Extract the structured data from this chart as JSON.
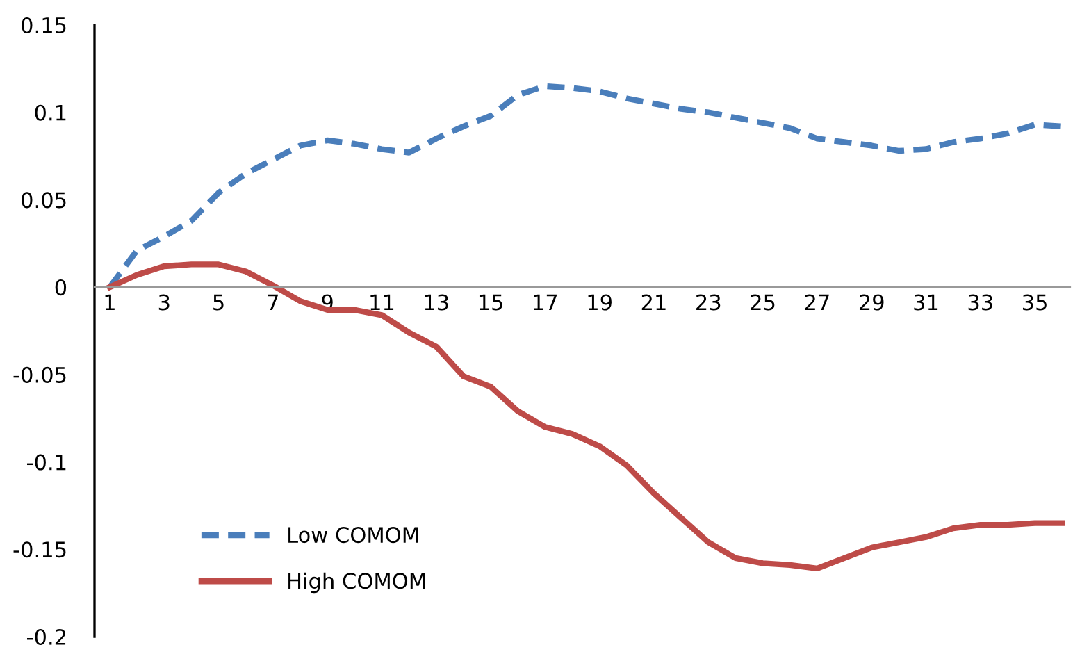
{
  "chart_data": {
    "type": "line",
    "categories": [
      "1",
      null,
      "3",
      null,
      "5",
      null,
      "7",
      null,
      "9",
      null,
      "11",
      null,
      "13",
      null,
      "15",
      null,
      "17",
      null,
      "19",
      null,
      "21",
      null,
      "23",
      null,
      "25",
      null,
      "27",
      null,
      "29",
      null,
      "31",
      null,
      "33",
      null,
      "35",
      null
    ],
    "series": [
      {
        "name": "Low COMOM",
        "color": "#4a7ebb",
        "line_style": "dashed",
        "values": [
          0,
          0.021,
          0.029,
          0.038,
          0.054,
          0.065,
          0.073,
          0.081,
          0.084,
          0.082,
          0.079,
          0.077,
          0.085,
          0.092,
          0.098,
          0.11,
          0.115,
          0.114,
          0.112,
          0.108,
          0.105,
          0.102,
          0.1,
          0.097,
          0.094,
          0.091,
          0.085,
          0.083,
          0.081,
          0.078,
          0.079,
          0.083,
          0.085,
          0.088,
          0.093,
          0.092
        ]
      },
      {
        "name": "High COMOM",
        "color": "#be4b48",
        "line_style": "solid",
        "values": [
          0,
          0.007,
          0.012,
          0.013,
          0.013,
          0.009,
          0.001,
          -0.008,
          -0.013,
          -0.013,
          -0.016,
          -0.026,
          -0.034,
          -0.051,
          -0.057,
          -0.071,
          -0.08,
          -0.084,
          -0.091,
          -0.102,
          -0.118,
          -0.132,
          -0.146,
          -0.155,
          -0.158,
          -0.159,
          -0.161,
          -0.155,
          -0.149,
          -0.146,
          -0.143,
          -0.138,
          -0.136,
          -0.136,
          -0.135,
          -0.135
        ]
      }
    ],
    "ylim": [
      -0.2,
      0.15
    ],
    "yticks": [
      -0.2,
      -0.15,
      -0.1,
      -0.05,
      0,
      0.05,
      0.1,
      0.15
    ],
    "grid": false,
    "legend": "bottom left",
    "marker": "none"
  }
}
